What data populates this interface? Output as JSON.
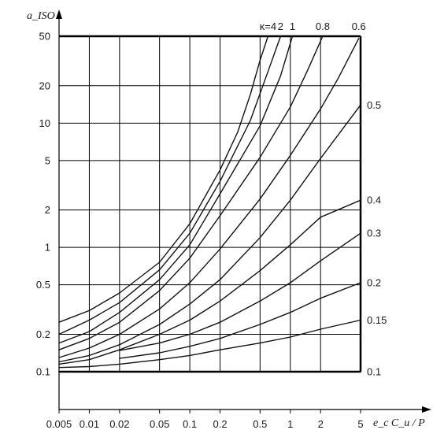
{
  "chart_data": {
    "type": "line",
    "title": "",
    "xlabel": "e_c C_u / P",
    "ylabel": "a_ISO",
    "x_scale": "log",
    "y_scale": "log",
    "xlim": [
      0.005,
      5
    ],
    "ylim": [
      0.1,
      50
    ],
    "grid": true,
    "x_ticks": [
      {
        "v": 0.005,
        "label": "0.005"
      },
      {
        "v": 0.01,
        "label": "0.01"
      },
      {
        "v": 0.02,
        "label": "0.02"
      },
      {
        "v": 0.05,
        "label": "0.05"
      },
      {
        "v": 0.1,
        "label": "0.1"
      },
      {
        "v": 0.2,
        "label": "0.2"
      },
      {
        "v": 0.5,
        "label": "0.5"
      },
      {
        "v": 1,
        "label": "1"
      },
      {
        "v": 2,
        "label": "2"
      },
      {
        "v": 5,
        "label": "5"
      }
    ],
    "y_ticks": [
      {
        "v": 0.1,
        "label": "0.1"
      },
      {
        "v": 0.2,
        "label": "0.2"
      },
      {
        "v": 0.5,
        "label": "0.5"
      },
      {
        "v": 1,
        "label": "1"
      },
      {
        "v": 2,
        "label": "2"
      },
      {
        "v": 5,
        "label": "5"
      },
      {
        "v": 10,
        "label": "10"
      },
      {
        "v": 20,
        "label": "20"
      },
      {
        "v": 50,
        "label": "50"
      }
    ],
    "series": [
      {
        "name": "κ=4",
        "label": "κ=4",
        "x": [
          0.005,
          0.01,
          0.02,
          0.05,
          0.1,
          0.2,
          0.3,
          0.4,
          0.5,
          0.6
        ],
        "y": [
          0.25,
          0.31,
          0.43,
          0.76,
          1.55,
          4.2,
          8.5,
          17,
          32,
          50
        ]
      },
      {
        "name": "κ=2",
        "label": "2",
        "x": [
          0.005,
          0.01,
          0.02,
          0.05,
          0.1,
          0.2,
          0.4,
          0.6,
          0.8
        ],
        "y": [
          0.2,
          0.26,
          0.36,
          0.66,
          1.3,
          3.4,
          10.5,
          26,
          50
        ]
      },
      {
        "name": "κ=1",
        "label": "1",
        "x": [
          0.005,
          0.01,
          0.02,
          0.05,
          0.1,
          0.2,
          0.5,
          0.8,
          1.05
        ],
        "y": [
          0.17,
          0.21,
          0.3,
          0.55,
          1.05,
          2.7,
          9.5,
          24,
          50
        ]
      },
      {
        "name": "κ=0.8",
        "label": "0.8",
        "x": [
          0.005,
          0.01,
          0.02,
          0.05,
          0.1,
          0.2,
          0.5,
          1,
          1.5,
          2.1
        ],
        "y": [
          0.15,
          0.185,
          0.25,
          0.45,
          0.82,
          1.8,
          5.3,
          13.5,
          27,
          50
        ]
      },
      {
        "name": "κ=0.6",
        "label": "0.6",
        "x": [
          0.005,
          0.01,
          0.02,
          0.05,
          0.1,
          0.2,
          0.5,
          1,
          2,
          3,
          4.8
        ],
        "y": [
          0.13,
          0.155,
          0.2,
          0.32,
          0.52,
          0.97,
          2.45,
          5.5,
          13,
          23,
          48
        ]
      },
      {
        "name": "κ=0.5",
        "label": "0.5",
        "x": [
          0.005,
          0.01,
          0.02,
          0.05,
          0.1,
          0.2,
          0.5,
          1,
          2,
          5
        ],
        "y": [
          0.12,
          0.135,
          0.165,
          0.24,
          0.35,
          0.55,
          1.2,
          2.4,
          5.2,
          14
        ]
      },
      {
        "name": "κ=0.4",
        "label": "0.4",
        "x": [
          0.005,
          0.01,
          0.02,
          0.05,
          0.1,
          0.2,
          0.5,
          1,
          2,
          5
        ],
        "y": [
          0.115,
          0.125,
          0.15,
          0.2,
          0.26,
          0.37,
          0.65,
          1.05,
          1.75,
          2.4
        ]
      },
      {
        "name": "κ=0.3",
        "label": "0.3",
        "x": [
          0.02,
          0.05,
          0.1,
          0.2,
          0.5,
          1,
          2,
          5
        ],
        "y": [
          0.148,
          0.17,
          0.2,
          0.25,
          0.37,
          0.52,
          0.78,
          1.3
        ]
      },
      {
        "name": "κ=0.2",
        "label": "0.2",
        "x": [
          0.02,
          0.05,
          0.1,
          0.2,
          0.5,
          1,
          2,
          5
        ],
        "y": [
          0.128,
          0.142,
          0.16,
          0.185,
          0.24,
          0.3,
          0.39,
          0.52
        ]
      },
      {
        "name": "κ=0.15",
        "label": "0.15",
        "x": [
          0.005,
          0.01,
          0.02,
          0.05,
          0.1,
          0.2,
          0.5,
          1,
          2,
          5
        ],
        "y": [
          0.108,
          0.11,
          0.115,
          0.125,
          0.135,
          0.15,
          0.17,
          0.19,
          0.22,
          0.26
        ]
      },
      {
        "name": "κ=0.1",
        "label": "0.1",
        "x": [
          0.005,
          5
        ],
        "y": [
          0.1,
          0.1
        ]
      }
    ]
  }
}
